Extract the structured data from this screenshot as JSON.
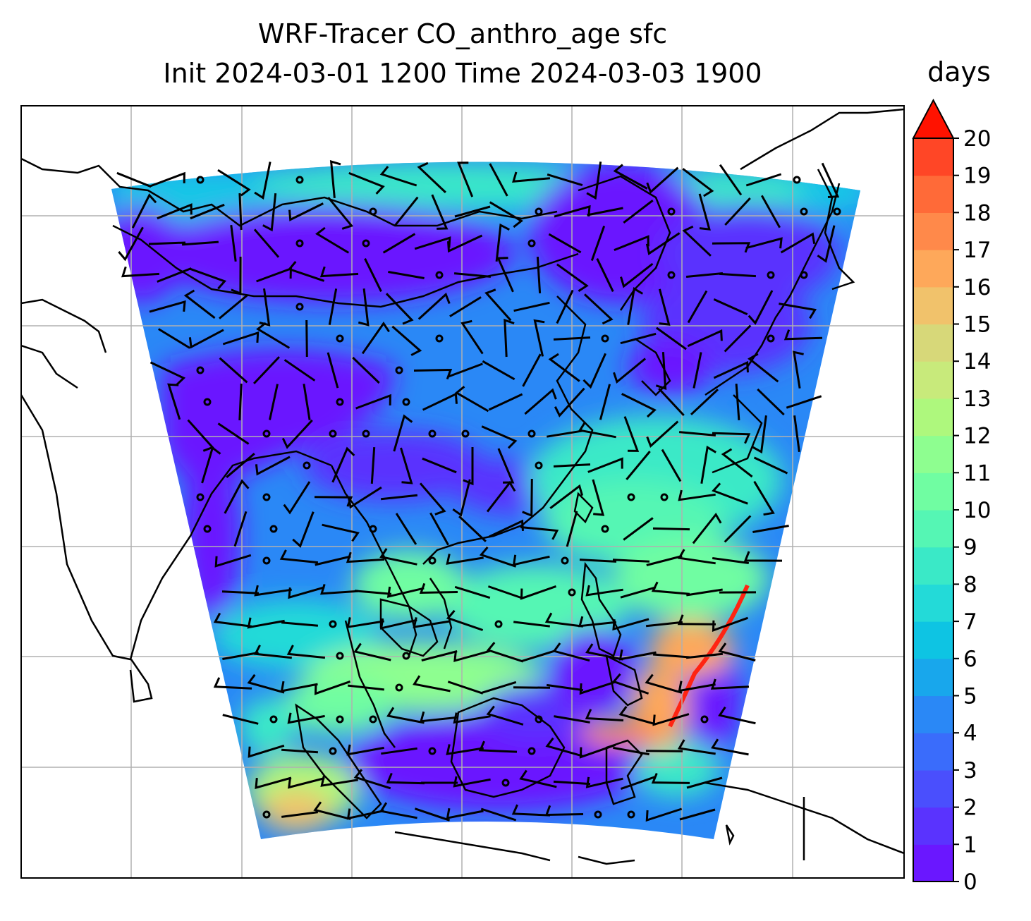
{
  "title_line1": "WRF-Tracer CO_anthro_age sfc",
  "title_line2": "Init 2024-03-01 1200 Time 2024-03-03 1900",
  "colorbar": {
    "label": "days",
    "ticks": [
      "0",
      "1",
      "2",
      "3",
      "4",
      "5",
      "6",
      "7",
      "8",
      "9",
      "10",
      "11",
      "12",
      "13",
      "14",
      "15",
      "16",
      "17",
      "18",
      "19",
      "20"
    ],
    "colors": [
      "#6a17ff",
      "#5a33fe",
      "#4a4ffd",
      "#3a6cfb",
      "#2a88f6",
      "#18a7ec",
      "#0ec4e3",
      "#23dad8",
      "#3ae9c7",
      "#55f6b4",
      "#70fda2",
      "#8efe90",
      "#aef87d",
      "#c8ea7b",
      "#d7d879",
      "#f1c26b",
      "#fea85a",
      "#ff894a",
      "#ff6a38",
      "#ff4626",
      "#ff2412"
    ],
    "extend_color": "#ff1200"
  },
  "map": {
    "gridlines": true,
    "field": "CO anthropogenic tracer age (surface)",
    "wind": "barbs"
  }
}
